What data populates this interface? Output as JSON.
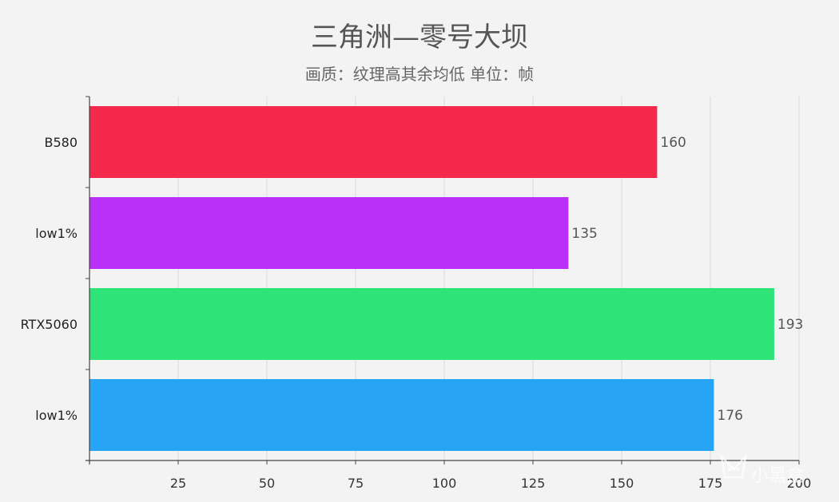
{
  "watermark": "小黑盒",
  "chart_data": {
    "type": "bar",
    "orientation": "horizontal",
    "title": "三角洲—零号大坝",
    "subtitle": "画质：纹理高其余均低  单位：帧",
    "categories": [
      "B580",
      "low1%",
      "RTX5060",
      "low1%"
    ],
    "values": [
      160,
      135,
      193,
      176
    ],
    "colors": [
      "#f5294b",
      "#b92ff7",
      "#2ee378",
      "#27a4f5"
    ],
    "xlim": [
      0,
      200
    ],
    "xticks": [
      25,
      50,
      75,
      100,
      125,
      150,
      175,
      200
    ],
    "grid": true,
    "legend": "none"
  }
}
